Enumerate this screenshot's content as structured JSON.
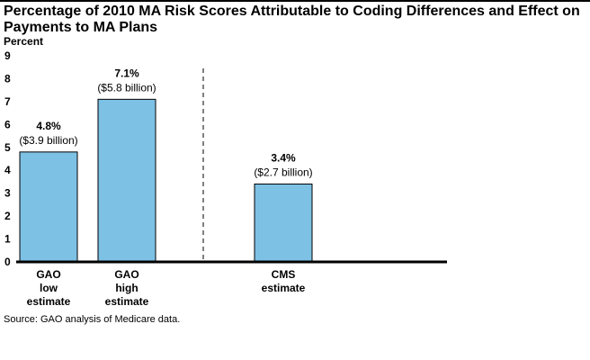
{
  "title": "Percentage of 2010 MA Risk Scores Attributable to Coding Differences and Effect on Payments to MA Plans",
  "source": "Source: GAO analysis of Medicare data.",
  "chart_data": {
    "type": "bar",
    "title": "Percentage of 2010 MA Risk Scores Attributable to Coding Differences and Effect on Payments to MA Plans",
    "ylabel": "Percent",
    "xlabel": "",
    "ylim": [
      0,
      9
    ],
    "yticks": [
      0,
      1,
      2,
      3,
      4,
      5,
      6,
      7,
      8,
      9
    ],
    "grid": false,
    "bar_color": "#7dc1e5",
    "categories": [
      [
        "GAO",
        "low",
        "estimate"
      ],
      [
        "GAO",
        "high",
        "estimate"
      ],
      [
        "CMS",
        "estimate"
      ]
    ],
    "values": [
      4.8,
      7.1,
      3.4
    ],
    "data_labels": [
      {
        "pct": "4.8%",
        "amount": "($3.9 billion)"
      },
      {
        "pct": "7.1%",
        "amount": "($5.8 billion)"
      },
      {
        "pct": "3.4%",
        "amount": "($2.7 billion)"
      }
    ],
    "separator": "dashed vertical line between GAO and CMS estimates"
  }
}
